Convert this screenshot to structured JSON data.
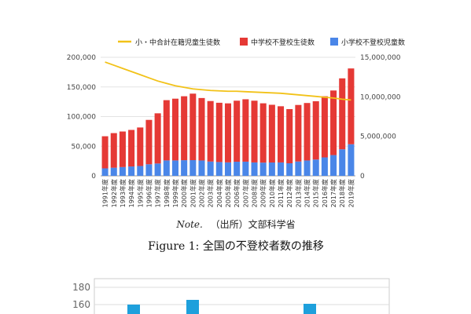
{
  "figure_caption": "Figure 1:  全国の不登校者数の推移",
  "note_label": "Note.",
  "note_text": "（出所）文部科学省",
  "chart_data": [
    {
      "type": "bar",
      "stacked": true,
      "title": "",
      "categories": [
        "1991年度",
        "1992年度",
        "1993年度",
        "1994年度",
        "1995年度",
        "1996年度",
        "1997年度",
        "1998年度",
        "1999年度",
        "2000年度",
        "2001年度",
        "2002年度",
        "2003年度",
        "2004年度",
        "2005年度",
        "2006年度",
        "2007年度",
        "2008年度",
        "2009年度",
        "2010年度",
        "2011年度",
        "2012年度",
        "2013年度",
        "2014年度",
        "2015年度",
        "2016年度",
        "2017年度",
        "2018年度",
        "2019年度"
      ],
      "series": [
        {
          "name": "小学校不登校児童数",
          "axis": "left",
          "color": "#4a86e8",
          "values": [
            12600,
            13700,
            14800,
            15800,
            16600,
            19500,
            20800,
            26000,
            26000,
            26400,
            26500,
            25900,
            24100,
            23300,
            22700,
            23800,
            23900,
            22600,
            22300,
            22500,
            22600,
            21200,
            24200,
            25900,
            27500,
            31100,
            35000,
            44800,
            53300
          ]
        },
        {
          "name": "中学校不登校生徒数",
          "axis": "left",
          "color": "#e53935",
          "values": [
            54200,
            58400,
            60000,
            61700,
            65000,
            74900,
            84700,
            101700,
            104200,
            107900,
            112200,
            105400,
            102100,
            100000,
            99600,
            103000,
            105300,
            104200,
            100100,
            97400,
            94800,
            91400,
            95400,
            97000,
            98400,
            103200,
            108999,
            119700,
            127900
          ]
        },
        {
          "name": "小・中合計在籍児童生徒数",
          "axis": "right",
          "type": "line",
          "color": "#f2c218",
          "values": [
            14400000,
            14000000,
            13600000,
            13200000,
            12800000,
            12400000,
            12000000,
            11700000,
            11400000,
            11200000,
            11000000,
            10900000,
            10800000,
            10750000,
            10700000,
            10700000,
            10650000,
            10600000,
            10550000,
            10500000,
            10450000,
            10350000,
            10250000,
            10150000,
            10050000,
            9950000,
            9850000,
            9700000,
            9600000
          ]
        }
      ],
      "legend_order": [
        "小・中合計在籍児童生徒数",
        "中学校不登校生徒数",
        "小学校不登校児童数"
      ],
      "legend_position": "top",
      "y_left": {
        "ticks": [
          "0",
          "50,000",
          "100,000",
          "150,000",
          "200,000"
        ],
        "ylim": [
          0,
          200000
        ]
      },
      "y_right": {
        "ticks": [
          "0",
          "5,000,000",
          "10,000,000",
          "15,000,000"
        ],
        "ylim": [
          0,
          15000000
        ]
      },
      "grid": true
    },
    {
      "type": "bar",
      "partial": true,
      "y_ticks": [
        "160",
        "180"
      ],
      "color": "#1ea0dc"
    }
  ]
}
